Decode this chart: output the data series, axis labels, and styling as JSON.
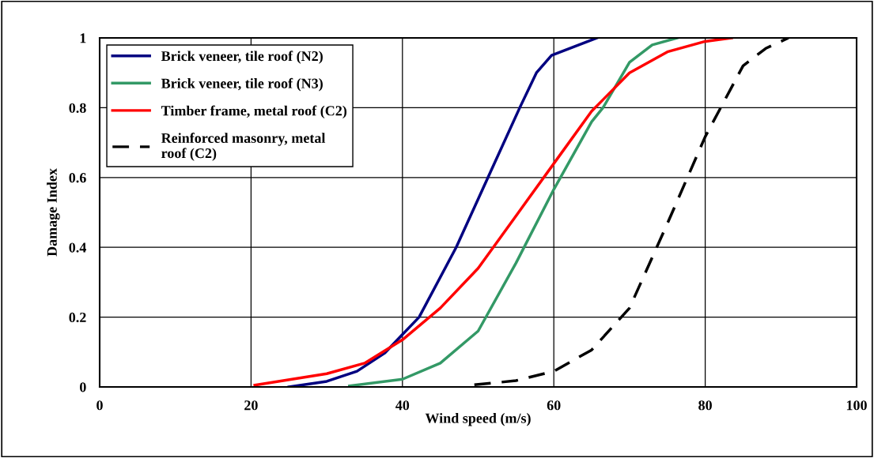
{
  "chart_data": {
    "type": "line",
    "xlabel": "Wind speed (m/s)",
    "ylabel": "Damage Index",
    "xlim": [
      0,
      100
    ],
    "xticks": [
      0,
      20,
      40,
      60,
      80,
      100
    ],
    "ylim": [
      0,
      1
    ],
    "yticks": [
      0,
      0.2,
      0.4,
      0.6,
      0.8,
      1
    ],
    "grid": true,
    "legend": "top left",
    "marker": "none",
    "series": [
      {
        "name": "Brick veneer, tile roof (N2)",
        "color": "#000080",
        "line_style": "solid",
        "x": [
          25,
          30,
          34,
          37.7,
          42.2,
          47.1,
          51.3,
          55.5,
          57.7,
          59.7,
          65.7
        ],
        "values": [
          0,
          0.016,
          0.045,
          0.098,
          0.2,
          0.4,
          0.6,
          0.8,
          0.9,
          0.95,
          1
        ]
      },
      {
        "name": "Brick veneer, tile roof (N3)",
        "color": "#339966",
        "line_style": "solid",
        "x": [
          33,
          40,
          45,
          50,
          55,
          60,
          65,
          66.5,
          70,
          73,
          76.3
        ],
        "values": [
          0.003,
          0.022,
          0.068,
          0.16,
          0.355,
          0.566,
          0.76,
          0.8,
          0.93,
          0.98,
          1
        ]
      },
      {
        "name": "Timber frame, metal roof (C2)",
        "color": "#ff0000",
        "line_style": "solid",
        "x": [
          20.5,
          30,
          35,
          40,
          45,
          50,
          55,
          60,
          65,
          70,
          75,
          80,
          83.5
        ],
        "values": [
          0.005,
          0.038,
          0.068,
          0.135,
          0.226,
          0.34,
          0.49,
          0.64,
          0.79,
          0.9,
          0.96,
          0.99,
          1
        ]
      },
      {
        "name": "Reinforced masonry, metal\nroof (C2)",
        "color": "#000000",
        "line_style": "dashed",
        "x": [
          49.5,
          55,
          60,
          65,
          70,
          75,
          80,
          85,
          88,
          91
        ],
        "values": [
          0.006,
          0.018,
          0.045,
          0.106,
          0.226,
          0.468,
          0.717,
          0.92,
          0.97,
          1
        ]
      }
    ]
  }
}
